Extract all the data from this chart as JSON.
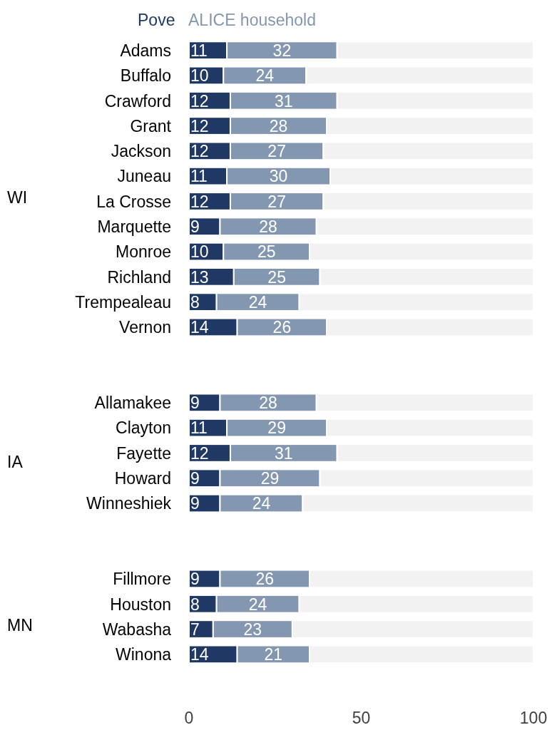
{
  "chart_data": {
    "type": "bar",
    "orientation": "horizontal",
    "stacked": true,
    "categories": [
      "Adams",
      "Buffalo",
      "Crawford",
      "Grant",
      "Jackson",
      "Juneau",
      "La Crosse",
      "Marquette",
      "Monroe",
      "Richland",
      "Trempealeau",
      "Vernon",
      null,
      null,
      "Allamakee",
      "Clayton",
      "Fayette",
      "Howard",
      "Winneshiek",
      null,
      null,
      "Fillmore",
      "Houston",
      "Wabasha",
      "Winona"
    ],
    "series": [
      {
        "name": "Pove",
        "color": "#1f3864",
        "values": [
          11,
          10,
          12,
          12,
          12,
          11,
          12,
          9,
          10,
          13,
          8,
          14,
          null,
          null,
          9,
          11,
          12,
          9,
          9,
          null,
          null,
          9,
          8,
          7,
          14
        ],
        "value_labels": [
          "11",
          "10",
          "12",
          "12",
          "12",
          "11",
          "12",
          "9",
          "10",
          "13",
          "8",
          "14",
          null,
          null,
          "9",
          "11",
          "12",
          "9",
          "9",
          null,
          null,
          "9",
          "8",
          "7",
          "14"
        ]
      },
      {
        "name": "ALICE household",
        "color": "#8497b0",
        "values": [
          32,
          24,
          31,
          28,
          27,
          30,
          27,
          28,
          25,
          25,
          24,
          26,
          null,
          null,
          28,
          29,
          31,
          29,
          24,
          null,
          null,
          26,
          24,
          23,
          21
        ],
        "value_labels": [
          "32",
          "24",
          "31",
          "28",
          "27",
          "30",
          "27",
          "28",
          "25",
          "25",
          "24",
          "26",
          null,
          null,
          "28",
          "29",
          "31",
          "29",
          "24",
          null,
          null,
          "26",
          "24",
          "23",
          "21"
        ]
      },
      {
        "color": "#f2f2f2",
        "values": [
          57,
          66,
          57,
          60,
          61,
          59,
          61,
          63,
          65,
          62,
          68,
          60,
          null,
          null,
          63,
          60,
          57,
          62,
          67,
          null,
          null,
          65,
          68,
          70,
          65
        ]
      }
    ],
    "xlim": [
      0,
      100
    ],
    "xticks": [
      0,
      50,
      100
    ],
    "legend": "top left",
    "annotations": [
      "WI",
      "IA",
      "MN"
    ]
  }
}
